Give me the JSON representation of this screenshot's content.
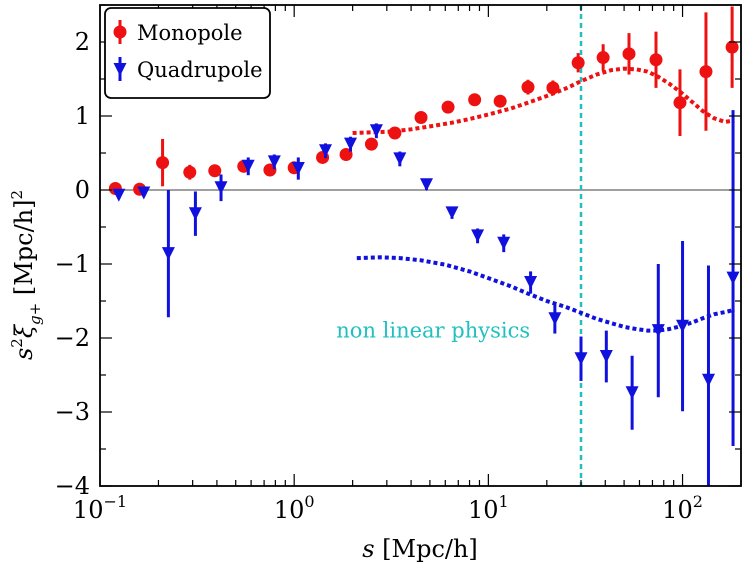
{
  "chart_data": {
    "type": "scatter",
    "title": "",
    "xlabel": "s [Mpc/h]",
    "ylabel": "s²ξ_{g+} [Mpc/h]²",
    "xscale": "log",
    "xlim": [
      0.1,
      200
    ],
    "ylim": [
      -4,
      2.5
    ],
    "x_ticks": [
      {
        "value": 0.1,
        "base": "10",
        "exp": "−1"
      },
      {
        "value": 1,
        "base": "10",
        "exp": "0"
      },
      {
        "value": 10,
        "base": "10",
        "exp": "1"
      },
      {
        "value": 100,
        "base": "10",
        "exp": "2"
      }
    ],
    "y_ticks": [
      {
        "value": -4,
        "label": "−4"
      },
      {
        "value": -3,
        "label": "−3"
      },
      {
        "value": -2,
        "label": "−2"
      },
      {
        "value": -1,
        "label": "−1"
      },
      {
        "value": 0,
        "label": "0"
      },
      {
        "value": 1,
        "label": "1"
      },
      {
        "value": 2,
        "label": "2"
      }
    ],
    "legend": {
      "position": "top-left",
      "entries": [
        {
          "name": "Monopole",
          "marker": "circle",
          "color": "#ee1111"
        },
        {
          "name": "Quadrupole",
          "marker": "triangle-down",
          "color": "#1111dd"
        }
      ]
    },
    "series": [
      {
        "name": "Monopole",
        "color": "#ee1111",
        "x": [
          0.12,
          0.16,
          0.21,
          0.29,
          0.39,
          0.55,
          0.75,
          1.0,
          1.4,
          1.85,
          2.5,
          3.3,
          4.5,
          6.2,
          8.5,
          11.5,
          16,
          21.5,
          29,
          39,
          53,
          73,
          97,
          132,
          180
        ],
        "y": [
          0.02,
          0.01,
          0.37,
          0.24,
          0.26,
          0.32,
          0.27,
          0.3,
          0.44,
          0.48,
          0.62,
          0.77,
          0.98,
          1.12,
          1.22,
          1.2,
          1.39,
          1.38,
          1.72,
          1.79,
          1.84,
          1.76,
          1.18,
          1.6,
          1.93
        ],
        "err": [
          0.04,
          0.04,
          0.32,
          0.1,
          0.07,
          0.07,
          0.06,
          0.07,
          0.07,
          0.07,
          0.06,
          0.05,
          0.05,
          0.06,
          0.06,
          0.07,
          0.1,
          0.1,
          0.13,
          0.18,
          0.28,
          0.38,
          0.45,
          0.8,
          0.55
        ]
      },
      {
        "name": "Quadrupole",
        "color": "#1111dd",
        "x": [
          0.125,
          0.168,
          0.225,
          0.31,
          0.42,
          0.58,
          0.79,
          1.05,
          1.45,
          1.95,
          2.65,
          3.5,
          4.8,
          6.5,
          8.8,
          12,
          16.5,
          22,
          30,
          40.5,
          55,
          75,
          100,
          136,
          182
        ],
        "y": [
          -0.07,
          -0.04,
          -0.86,
          -0.32,
          0.03,
          0.32,
          0.38,
          0.29,
          0.53,
          0.62,
          0.8,
          0.42,
          0.07,
          -0.31,
          -0.62,
          -0.72,
          -1.25,
          -1.74,
          -2.28,
          -2.25,
          -2.74,
          -1.9,
          -1.84,
          -2.57,
          -1.19
        ],
        "err": [
          0.05,
          0.05,
          0.86,
          0.3,
          0.18,
          0.12,
          0.1,
          0.15,
          0.1,
          0.1,
          0.1,
          0.1,
          0.07,
          0.08,
          0.1,
          0.12,
          0.15,
          0.2,
          0.3,
          0.35,
          0.5,
          0.9,
          1.15,
          1.55,
          2.27
        ]
      }
    ],
    "model_curves": [
      {
        "name": "Monopole model",
        "color": "#ee1111",
        "style": "dotted",
        "x": [
          2.0,
          2.6,
          3.2,
          4,
          5,
          6.5,
          8,
          10,
          13,
          16,
          20,
          25,
          30,
          36,
          43,
          50,
          58,
          66,
          75,
          85,
          98,
          112,
          128,
          145,
          165,
          185
        ],
        "y": [
          0.77,
          0.78,
          0.79,
          0.82,
          0.86,
          0.91,
          0.96,
          1.02,
          1.1,
          1.18,
          1.27,
          1.37,
          1.47,
          1.56,
          1.62,
          1.64,
          1.63,
          1.6,
          1.53,
          1.44,
          1.32,
          1.19,
          1.06,
          0.97,
          0.92,
          0.94
        ]
      },
      {
        "name": "Quadrupole model",
        "color": "#1111dd",
        "style": "dotted",
        "x": [
          2.1,
          2.8,
          3.5,
          4.5,
          6,
          8,
          10,
          13,
          16,
          20,
          25,
          30,
          36,
          43,
          50,
          58,
          66,
          75,
          85,
          98,
          112,
          128,
          145,
          165,
          185
        ],
        "y": [
          -0.92,
          -0.91,
          -0.92,
          -0.95,
          -1.01,
          -1.1,
          -1.19,
          -1.3,
          -1.4,
          -1.5,
          -1.58,
          -1.66,
          -1.74,
          -1.8,
          -1.85,
          -1.88,
          -1.9,
          -1.9,
          -1.88,
          -1.84,
          -1.79,
          -1.73,
          -1.68,
          -1.65,
          -1.62
        ]
      }
    ],
    "zero_line": 0,
    "vertical_line": {
      "x": 30,
      "color": "#20c0c0",
      "style": "dashed"
    },
    "annotation": {
      "text": "non linear physics",
      "x": 5.2,
      "y": -1.9,
      "color": "#20c0c0"
    }
  }
}
